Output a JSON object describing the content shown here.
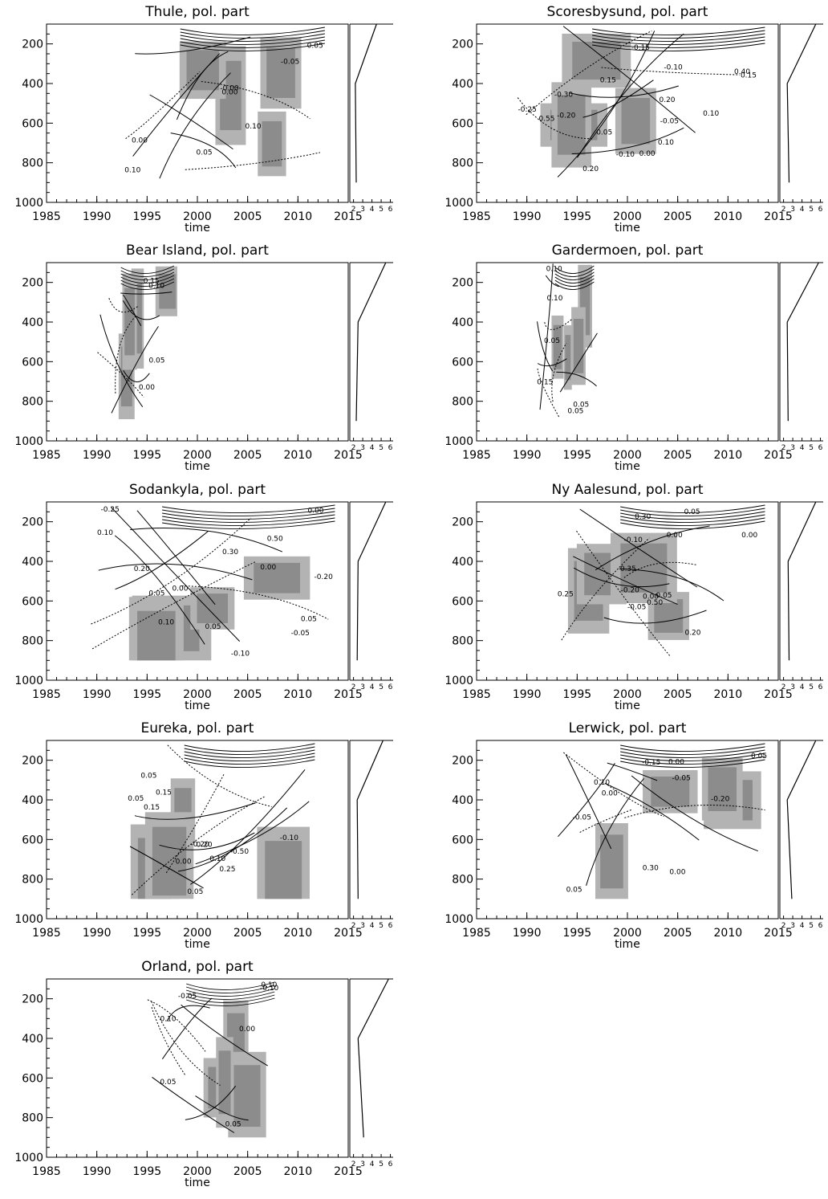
{
  "chart_data": [
    {
      "type": "contour",
      "title": "Thule, pol. part",
      "xlabel": "time",
      "ylabel": "",
      "xlim": [
        1985,
        2015
      ],
      "ylim": [
        1000,
        100
      ],
      "xticks": [
        1985,
        1990,
        1995,
        2000,
        2005,
        2010,
        2015
      ],
      "yticks": [
        200,
        400,
        600,
        800,
        1000
      ],
      "data_extent": {
        "x": [
          1992,
          2013
        ],
        "p": [
          100,
          900
        ]
      },
      "contour_labels": [
        "-0.00",
        "0.10",
        "0.05",
        "0.00",
        "0.00",
        "-0.05",
        "0.05",
        "0.10"
      ],
      "side_profile": {
        "xticks": [
          "2",
          "3",
          "4",
          "5",
          "6"
        ],
        "p": [
          100,
          400,
          900
        ],
        "x": [
          4.5,
          2.2,
          2.3
        ]
      }
    },
    {
      "type": "contour",
      "title": "Scoresbysund, pol. part",
      "xlabel": "time",
      "ylabel": "",
      "xlim": [
        1985,
        2015
      ],
      "ylim": [
        1000,
        100
      ],
      "xticks": [
        1985,
        1990,
        1995,
        2000,
        2005,
        2010,
        2015
      ],
      "yticks": [
        200,
        400,
        600,
        800,
        1000
      ],
      "data_extent": {
        "x": [
          1989,
          2014
        ],
        "p": [
          100,
          900
        ]
      },
      "contour_labels": [
        "0.55",
        "0.40",
        "0.20",
        "-0.10",
        "0.10",
        "0.15",
        "-0.15",
        "-0.10",
        "-0.20",
        "-0.25",
        "-0.30",
        "-0.05",
        "0.00",
        "0.05",
        "0.10",
        "0.15",
        "0.20"
      ],
      "side_profile": {
        "xticks": [
          "2",
          "3",
          "4",
          "5",
          "6"
        ],
        "p": [
          100,
          400,
          900
        ],
        "x": [
          5.5,
          2.4,
          2.6
        ]
      }
    },
    {
      "type": "contour",
      "title": "Bear Island, pol. part",
      "xlabel": "time",
      "ylabel": "",
      "xlim": [
        1985,
        2015
      ],
      "ylim": [
        1000,
        100
      ],
      "xticks": [
        1985,
        1990,
        1995,
        2000,
        2005,
        2010,
        2015
      ],
      "yticks": [
        200,
        400,
        600,
        800,
        1000
      ],
      "data_extent": {
        "x": [
          1990,
          1998
        ],
        "p": [
          100,
          900
        ]
      },
      "contour_labels": [
        "0.00",
        "0.05",
        "0.10",
        "0.15"
      ],
      "side_profile": {
        "xticks": [
          "2",
          "3",
          "4",
          "5",
          "6"
        ],
        "p": [
          100,
          400,
          900
        ],
        "x": [
          5.5,
          2.5,
          2.3
        ]
      }
    },
    {
      "type": "contour",
      "title": "Gardermoen, pol. part",
      "xlabel": "time",
      "ylabel": "",
      "xlim": [
        1985,
        2015
      ],
      "ylim": [
        1000,
        100
      ],
      "xticks": [
        1985,
        1990,
        1995,
        2000,
        2005,
        2010,
        2015
      ],
      "yticks": [
        200,
        400,
        600,
        800,
        1000
      ],
      "data_extent": {
        "x": [
          1991,
          1997
        ],
        "p": [
          100,
          900
        ]
      },
      "contour_labels": [
        "0.10",
        "0.05",
        "0.15",
        "0.05",
        "0.10",
        "0.05"
      ],
      "side_profile": {
        "xticks": [
          "2",
          "3",
          "4",
          "5",
          "6"
        ],
        "p": [
          100,
          400,
          900
        ],
        "x": [
          5.8,
          2.4,
          2.5
        ]
      }
    },
    {
      "type": "contour",
      "title": "Sodankyla, pol. part",
      "xlabel": "time",
      "ylabel": "",
      "xlim": [
        1985,
        2015
      ],
      "ylim": [
        1000,
        100
      ],
      "xticks": [
        1985,
        1990,
        1995,
        2000,
        2005,
        2010,
        2015
      ],
      "yticks": [
        200,
        400,
        600,
        800,
        1000
      ],
      "data_extent": {
        "x": [
          1989,
          2014
        ],
        "p": [
          100,
          900
        ]
      },
      "contour_labels": [
        "0.50",
        "0.30",
        "0.20",
        "0.05",
        "0.00",
        "0.05",
        "0.10",
        "0.00",
        "-0.05",
        "0.05",
        "0.10",
        "0.00",
        "-0.10",
        "-0.20",
        "-0.25"
      ],
      "side_profile": {
        "xticks": [
          "2",
          "3",
          "4",
          "5",
          "6"
        ],
        "p": [
          100,
          400,
          900
        ],
        "x": [
          5.5,
          2.5,
          2.4
        ]
      }
    },
    {
      "type": "contour",
      "title": "Ny Aalesund, pol. part",
      "xlabel": "time",
      "ylabel": "",
      "xlim": [
        1985,
        2015
      ],
      "ylim": [
        1000,
        100
      ],
      "xticks": [
        1985,
        1990,
        1995,
        2000,
        2005,
        2010,
        2015
      ],
      "yticks": [
        200,
        400,
        600,
        800,
        1000
      ],
      "data_extent": {
        "x": [
          1993,
          2014
        ],
        "p": [
          100,
          900
        ]
      },
      "contour_labels": [
        "0.35",
        "0.50",
        "0.30",
        "0.25",
        "0.20",
        "-0.05",
        "0.00",
        "0.05",
        "0.00",
        "-0.20",
        "-0.10",
        "0.00",
        "0.05"
      ],
      "side_profile": {
        "xticks": [
          "2",
          "3",
          "4",
          "5",
          "6"
        ],
        "p": [
          100,
          400,
          900
        ],
        "x": [
          5.5,
          2.5,
          2.6
        ]
      }
    },
    {
      "type": "contour",
      "title": "Eureka, pol. part",
      "xlabel": "time",
      "ylabel": "",
      "xlim": [
        1985,
        2015
      ],
      "ylim": [
        1000,
        100
      ],
      "xticks": [
        1985,
        1990,
        1995,
        2000,
        2005,
        2010,
        2015
      ],
      "yticks": [
        200,
        400,
        600,
        800,
        1000
      ],
      "data_extent": {
        "x": [
          1993,
          2012
        ],
        "p": [
          100,
          900
        ]
      },
      "contour_labels": [
        "-0.10",
        "0.05",
        "-0.50",
        "0.15",
        "-0.20",
        "0.10",
        "0.05",
        "0.00",
        "0.05",
        "0.15",
        "0.20",
        "0.25"
      ],
      "side_profile": {
        "xticks": [
          "2",
          "3",
          "4",
          "5",
          "6"
        ],
        "p": [
          100,
          400,
          900
        ],
        "x": [
          5.2,
          2.4,
          2.5
        ]
      }
    },
    {
      "type": "contour",
      "title": "Lerwick, pol. part",
      "xlabel": "time",
      "ylabel": "",
      "xlim": [
        1985,
        2015
      ],
      "ylim": [
        1000,
        100
      ],
      "xticks": [
        1985,
        1990,
        1995,
        2000,
        2005,
        2010,
        2015
      ],
      "yticks": [
        200,
        400,
        600,
        800,
        1000
      ],
      "data_extent": {
        "x": [
          1993,
          2014
        ],
        "p": [
          100,
          900
        ]
      },
      "contour_labels": [
        "0.30",
        "0.00",
        "-0.20",
        "0.10",
        "-0.05",
        "0.00",
        "-0.05",
        "0.05",
        "0.00",
        "0.05",
        "-0.15"
      ],
      "side_profile": {
        "xticks": [
          "2",
          "3",
          "4",
          "5",
          "6"
        ],
        "p": [
          100,
          400,
          900
        ],
        "x": [
          5.5,
          2.4,
          2.9
        ]
      }
    },
    {
      "type": "contour",
      "title": "Orland, pol. part",
      "xlabel": "time",
      "ylabel": "",
      "xlim": [
        1985,
        2015
      ],
      "ylim": [
        1000,
        100
      ],
      "xticks": [
        1985,
        1990,
        1995,
        2000,
        2005,
        2010,
        2015
      ],
      "yticks": [
        200,
        400,
        600,
        800,
        1000
      ],
      "data_extent": {
        "x": [
          1995,
          2008
        ],
        "p": [
          100,
          900
        ]
      },
      "contour_labels": [
        "-0.10",
        "0.05",
        "0.10",
        "-0.05",
        "0.00",
        "0.05",
        "0.10"
      ],
      "side_profile": {
        "xticks": [
          "2",
          "3",
          "4",
          "5",
          "6"
        ],
        "p": [
          100,
          400,
          900
        ],
        "x": [
          5.8,
          2.5,
          3.1
        ]
      }
    }
  ]
}
